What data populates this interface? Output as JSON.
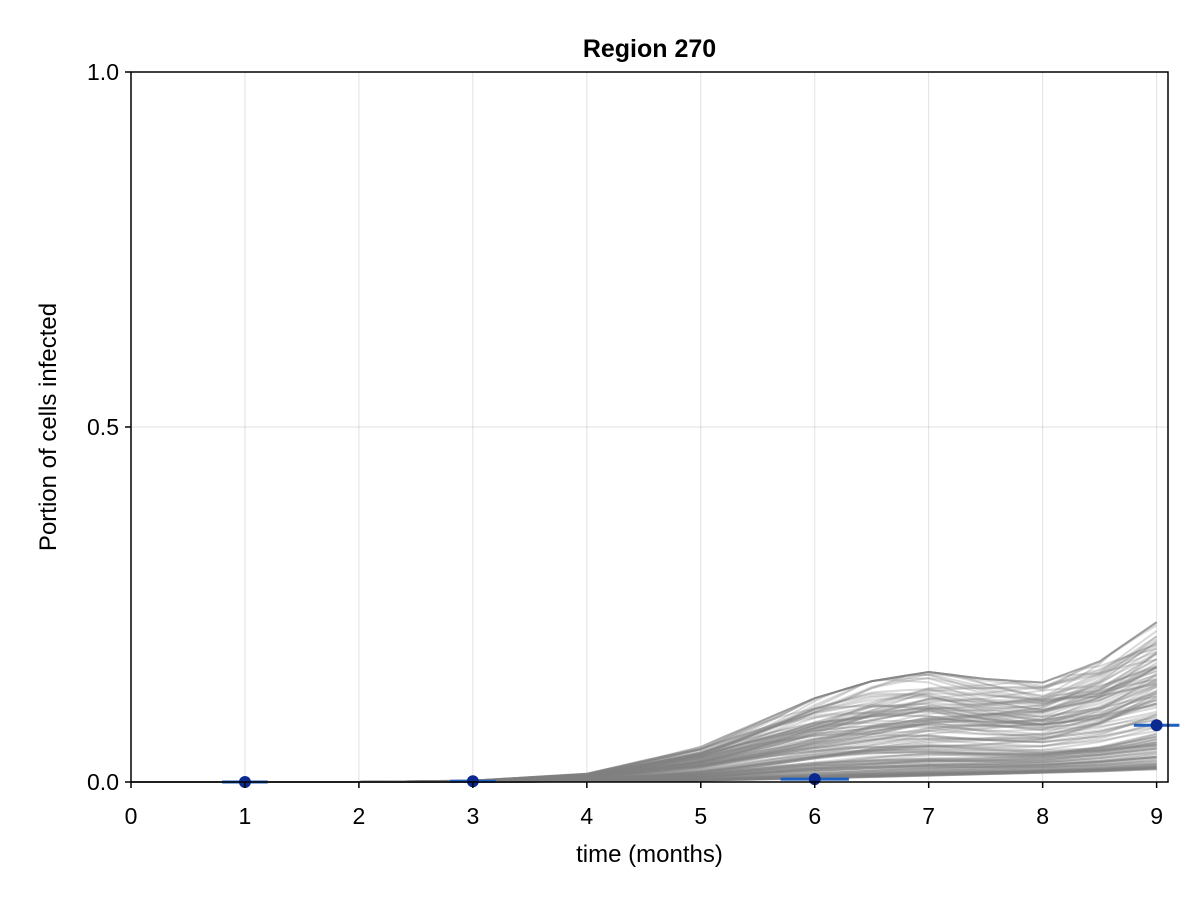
{
  "colors": {
    "background": "#ffffff",
    "simulation": "#808080",
    "observation_marker": "#0b2a8f",
    "errorbar": "#1f5fbf"
  },
  "chart_data": {
    "type": "line",
    "title": "Region 270",
    "xlabel": "time (months)",
    "ylabel": "Portion of cells infected",
    "xlim": [
      0,
      9.1
    ],
    "ylim": [
      0,
      1
    ],
    "xticks": [
      "0",
      "1",
      "2",
      "3",
      "4",
      "5",
      "6",
      "7",
      "8",
      "9"
    ],
    "yticks": [
      "0.0",
      "0.5",
      "1.0"
    ],
    "grid": true,
    "legend": "none",
    "simulated_trajectories": {
      "description_series_style": "many semi-transparent gray curves",
      "x": [
        0,
        1,
        2,
        3,
        4,
        5,
        6,
        6.5,
        7,
        7.5,
        8,
        8.5,
        9
      ],
      "envelope_low": [
        0,
        0,
        0,
        0,
        0.001,
        0.002,
        0.005,
        0.007,
        0.009,
        0.011,
        0.013,
        0.015,
        0.018
      ],
      "envelope_high": [
        0,
        0,
        0,
        0.002,
        0.012,
        0.05,
        0.118,
        0.142,
        0.155,
        0.145,
        0.14,
        0.17,
        0.225
      ]
    },
    "observations": {
      "x": [
        1,
        3,
        6,
        9
      ],
      "y": [
        0.0,
        0.001,
        0.004,
        0.08
      ],
      "x_err": [
        0.2,
        0.2,
        0.3,
        0.2
      ]
    }
  }
}
